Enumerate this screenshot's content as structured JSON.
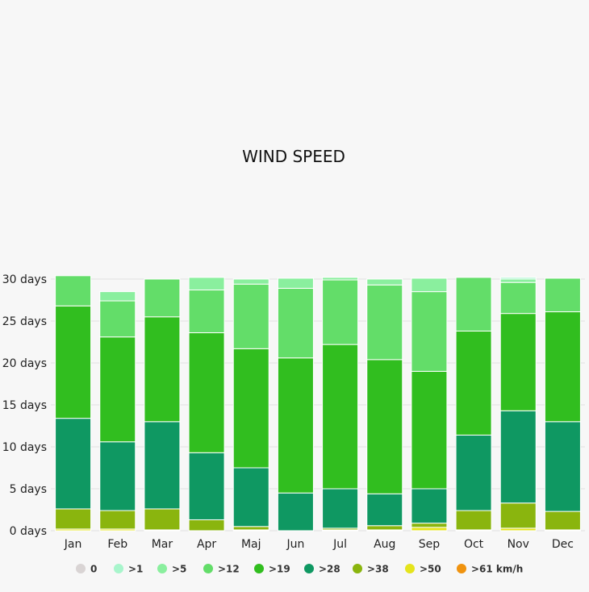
{
  "chart_data": {
    "type": "bar",
    "stacked": true,
    "title": "WIND SPEED",
    "ylim": [
      0,
      30
    ],
    "y_ticks": [
      0,
      5,
      10,
      15,
      20,
      25,
      30
    ],
    "y_tick_labels": [
      "0 days",
      "5 days",
      "10 days",
      "15 days",
      "20 days",
      "25 days",
      "30 days"
    ],
    "grid": true,
    "legend_position": "bottom",
    "categories": [
      "Jan",
      "Feb",
      "Mar",
      "Apr",
      "Maj",
      "Jun",
      "Jul",
      "Aug",
      "Sep",
      "Oct",
      "Nov",
      "Dec"
    ],
    "series": [
      {
        "name": "0",
        "color": "#d9d4d4",
        "values": [
          0,
          0,
          0,
          0,
          0,
          0,
          0,
          0,
          0,
          0,
          0,
          0
        ]
      },
      {
        "name": ">1",
        "color": "#a8f5cc",
        "values": [
          0,
          0,
          0,
          0,
          0,
          0,
          0,
          0,
          0,
          0,
          0.2,
          0
        ]
      },
      {
        "name": ">5",
        "color": "#8aef9e",
        "values": [
          0,
          1.1,
          0,
          1.5,
          0.6,
          1.2,
          0.3,
          0.7,
          1.6,
          0,
          0.4,
          0
        ]
      },
      {
        "name": ">12",
        "color": "#63dd69",
        "values": [
          3.6,
          4.3,
          4.5,
          5.1,
          7.7,
          8.3,
          7.7,
          8.9,
          9.5,
          6.4,
          3.7,
          4
        ]
      },
      {
        "name": ">19",
        "color": "#31be1f",
        "values": [
          13.4,
          12.5,
          12.5,
          14.3,
          14.2,
          16.1,
          17.2,
          16,
          14,
          12.4,
          11.6,
          13.1
        ]
      },
      {
        "name": ">28",
        "color": "#0f9862",
        "values": [
          10.8,
          8.2,
          10.4,
          8,
          7,
          4.5,
          4.7,
          3.8,
          4.1,
          9,
          11,
          10.7
        ]
      },
      {
        "name": ">38",
        "color": "#8ab50e",
        "values": [
          2.4,
          2.2,
          2.5,
          1.3,
          0.4,
          0,
          0.2,
          0.5,
          0.5,
          2.3,
          3,
          2.2
        ]
      },
      {
        "name": ">50",
        "color": "#e5e41c",
        "values": [
          0.2,
          0.2,
          0.1,
          0,
          0.1,
          0,
          0.1,
          0.1,
          0.4,
          0.1,
          0.3,
          0.1
        ]
      },
      {
        "name": ">61 km/h",
        "color": "#f0930f",
        "values": [
          0,
          0,
          0,
          0,
          0,
          0,
          0,
          0,
          0,
          0,
          0,
          0
        ]
      }
    ]
  }
}
